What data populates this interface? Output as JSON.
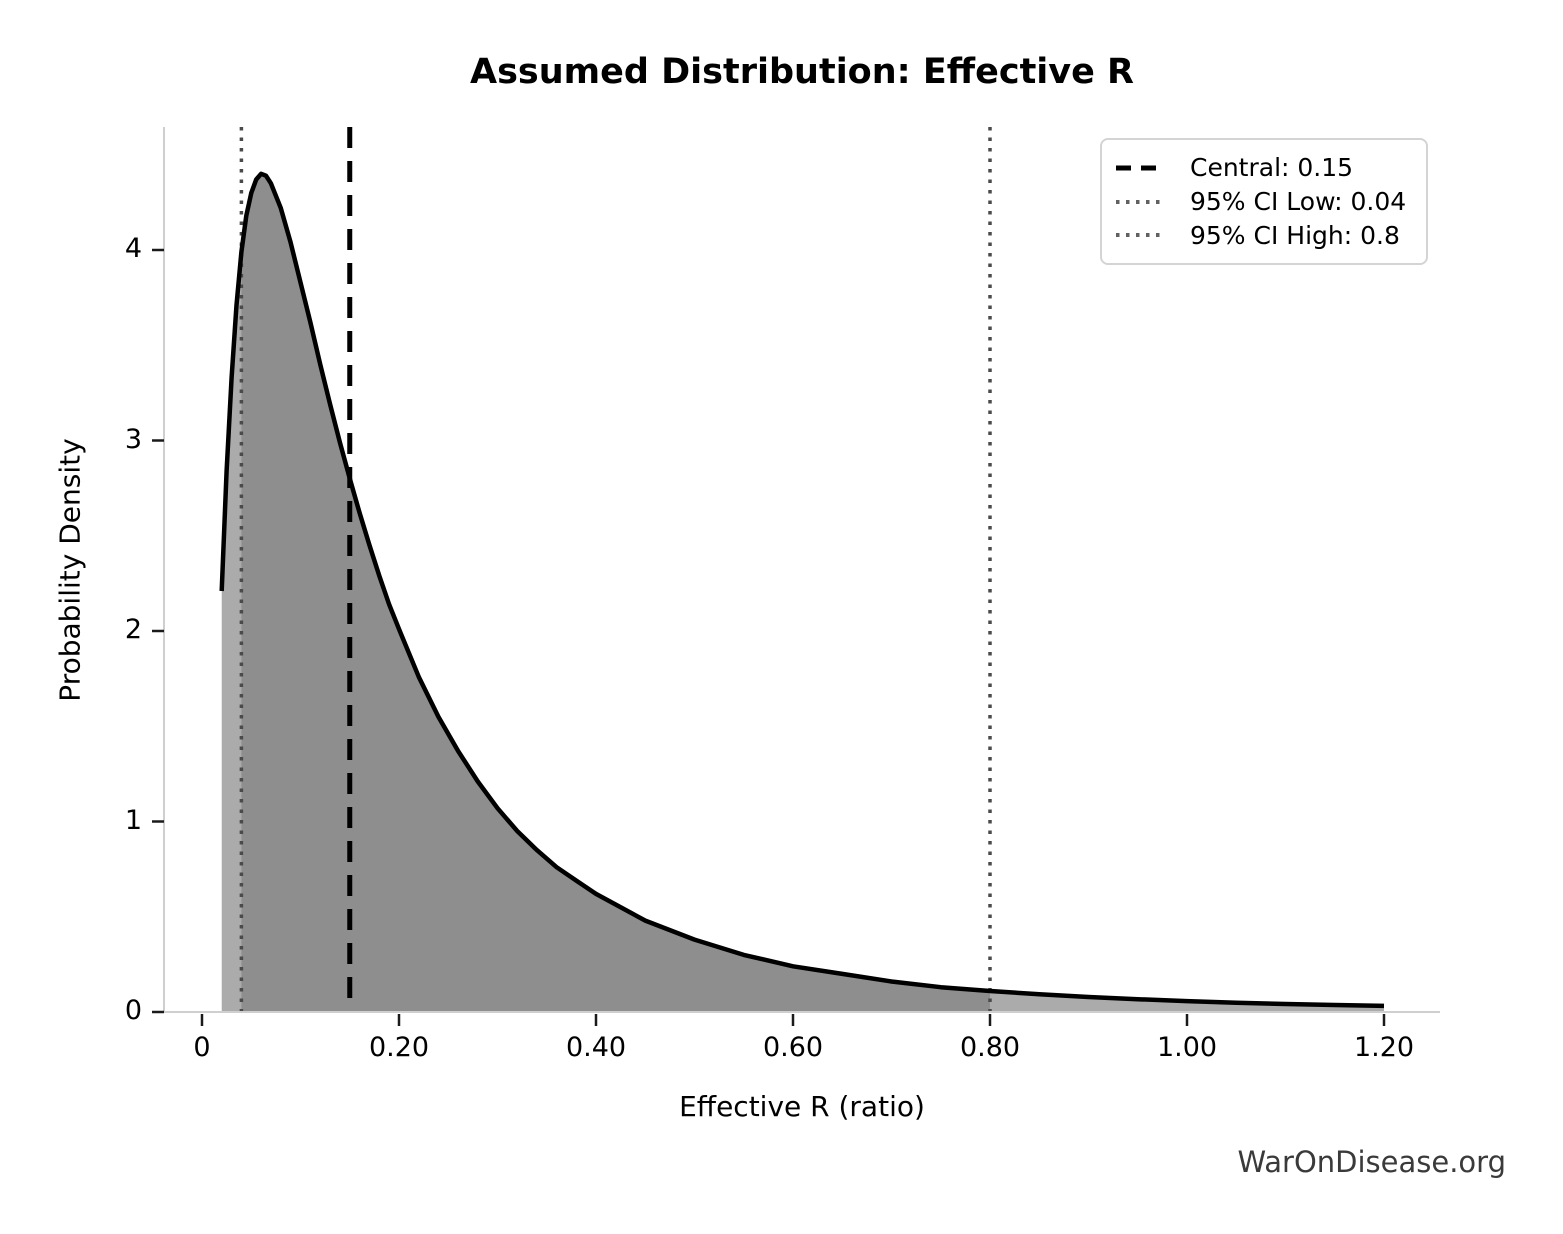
{
  "chart_data": {
    "type": "area",
    "title": "Assumed Distribution: Effective R",
    "xlabel": "Effective R (ratio)",
    "ylabel": "Probability Density",
    "xlim": [
      -0.039,
      1.257
    ],
    "ylim": [
      0,
      4.65
    ],
    "grid": false,
    "legend_position": "upper right",
    "x_ticks": [
      0,
      0.2,
      0.4,
      0.6,
      0.8,
      1.0,
      1.2
    ],
    "x_tick_labels": [
      "0",
      "0.20",
      "0.40",
      "0.60",
      "0.80",
      "1.00",
      "1.20"
    ],
    "y_ticks": [
      0,
      1,
      2,
      3,
      4
    ],
    "y_tick_labels": [
      "0",
      "1",
      "2",
      "3",
      "4"
    ],
    "central": 0.15,
    "ci_low": 0.04,
    "ci_high": 0.8,
    "curve_x_range": [
      0.02,
      1.2
    ],
    "curve": {
      "x": [
        0.02,
        0.025,
        0.03,
        0.035,
        0.04,
        0.045,
        0.05,
        0.055,
        0.06,
        0.065,
        0.07,
        0.08,
        0.09,
        0.1,
        0.11,
        0.12,
        0.13,
        0.14,
        0.15,
        0.16,
        0.17,
        0.18,
        0.19,
        0.2,
        0.22,
        0.24,
        0.26,
        0.28,
        0.3,
        0.32,
        0.34,
        0.36,
        0.38,
        0.4,
        0.45,
        0.5,
        0.55,
        0.6,
        0.65,
        0.7,
        0.75,
        0.8,
        0.85,
        0.9,
        0.95,
        1.0,
        1.05,
        1.1,
        1.15,
        1.2
      ],
      "density": [
        2.21,
        2.84,
        3.33,
        3.71,
        3.99,
        4.18,
        4.3,
        4.37,
        4.4,
        4.39,
        4.35,
        4.22,
        4.04,
        3.83,
        3.62,
        3.4,
        3.19,
        2.99,
        2.8,
        2.62,
        2.45,
        2.29,
        2.14,
        2.01,
        1.76,
        1.55,
        1.37,
        1.21,
        1.07,
        0.95,
        0.85,
        0.76,
        0.69,
        0.62,
        0.48,
        0.38,
        0.3,
        0.24,
        0.2,
        0.16,
        0.13,
        0.11,
        0.093,
        0.079,
        0.067,
        0.057,
        0.049,
        0.042,
        0.037,
        0.032
      ]
    }
  },
  "legend": {
    "items": [
      {
        "label": "Central: 0.15",
        "style": "dashed",
        "color": "#000000"
      },
      {
        "label": "95% CI Low: 0.04",
        "style": "dotted",
        "color": "#616161"
      },
      {
        "label": "95% CI High: 0.8",
        "style": "dotted",
        "color": "#616161"
      }
    ]
  },
  "watermark": "WarOnDisease.org",
  "colors": {
    "curve": "#000000",
    "fill_ci": "#8e8e8e",
    "fill_tail": "#ababab",
    "central_line": "#000000",
    "ci_line": "#4a4a4a",
    "spine": "#cfcfcf",
    "tick": "#1a1a1a",
    "text": "#000000",
    "watermark": "#3a3a3a",
    "background": "#ffffff"
  }
}
